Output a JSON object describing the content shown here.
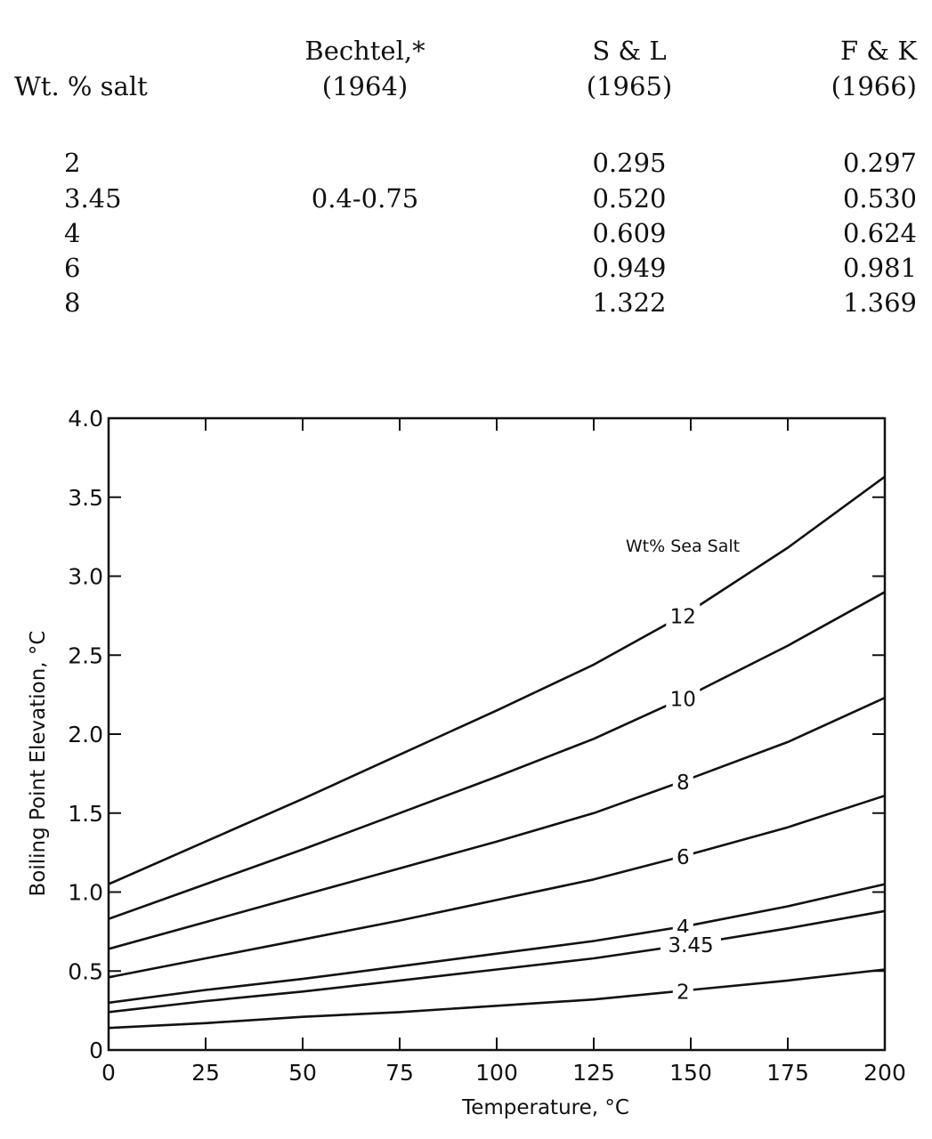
{
  "table": {
    "headers": [
      {
        "name": "wt-salt",
        "line1": "",
        "line2": "Wt. % salt"
      },
      {
        "name": "bechtel",
        "line1": "Bechtel,*",
        "line2": "(1964)"
      },
      {
        "name": "s-and-l",
        "line1": "S & L",
        "line2": "(1965)"
      },
      {
        "name": "f-and-k",
        "line1": "F & K",
        "line2": "(1966)"
      }
    ],
    "rows": [
      [
        "2",
        "",
        "0.295",
        "0.297"
      ],
      [
        "3.45",
        "0.4-0.75",
        "0.520",
        "0.530"
      ],
      [
        "4",
        "",
        "0.609",
        "0.624"
      ],
      [
        "6",
        "",
        "0.949",
        "0.981"
      ],
      [
        "8",
        "",
        "1.322",
        "1.369"
      ]
    ]
  },
  "chart_data": {
    "type": "line",
    "title": "",
    "xlabel": "Temperature, °C",
    "ylabel": "Boiling Point Elevation, °C",
    "xlim": [
      0,
      200
    ],
    "ylim": [
      0,
      4.0
    ],
    "x_ticks": [
      0,
      25,
      50,
      75,
      100,
      125,
      150,
      175,
      200
    ],
    "x_tick_labels": [
      "0",
      "25",
      "50",
      "75",
      "100",
      "125",
      "150",
      "175",
      "200"
    ],
    "y_ticks": [
      0,
      0.5,
      1.0,
      1.5,
      2.0,
      2.5,
      3.0,
      3.5,
      4.0
    ],
    "y_tick_labels": [
      "0",
      "0.5",
      "1.0",
      "1.5",
      "2.0",
      "2.5",
      "3.0",
      "3.5",
      "4.0"
    ],
    "grid": false,
    "legend_title": "Wt% Sea Salt",
    "series": [
      {
        "name": "12",
        "label_x": 148,
        "x": [
          0,
          25,
          50,
          75,
          100,
          125,
          150,
          175,
          200
        ],
        "y": [
          1.05,
          1.32,
          1.59,
          1.87,
          2.15,
          2.44,
          2.78,
          3.18,
          3.63
        ]
      },
      {
        "name": "10",
        "label_x": 148,
        "x": [
          0,
          25,
          50,
          75,
          100,
          125,
          150,
          175,
          200
        ],
        "y": [
          0.83,
          1.05,
          1.27,
          1.5,
          1.73,
          1.97,
          2.25,
          2.56,
          2.9
        ]
      },
      {
        "name": "8",
        "label_x": 148,
        "x": [
          0,
          25,
          50,
          75,
          100,
          125,
          150,
          175,
          200
        ],
        "y": [
          0.64,
          0.81,
          0.98,
          1.15,
          1.32,
          1.5,
          1.72,
          1.95,
          2.23
        ]
      },
      {
        "name": "6",
        "label_x": 148,
        "x": [
          0,
          25,
          50,
          75,
          100,
          125,
          150,
          175,
          200
        ],
        "y": [
          0.46,
          0.58,
          0.7,
          0.82,
          0.95,
          1.08,
          1.24,
          1.41,
          1.61
        ]
      },
      {
        "name": "4",
        "label_x": 148,
        "x": [
          0,
          25,
          50,
          75,
          100,
          125,
          150,
          175,
          200
        ],
        "y": [
          0.3,
          0.38,
          0.45,
          0.53,
          0.61,
          0.69,
          0.79,
          0.91,
          1.05
        ]
      },
      {
        "name": "3.45",
        "label_x": 150,
        "x": [
          0,
          25,
          50,
          75,
          100,
          125,
          150,
          175,
          200
        ],
        "y": [
          0.24,
          0.31,
          0.37,
          0.44,
          0.51,
          0.58,
          0.67,
          0.77,
          0.88
        ]
      },
      {
        "name": "2",
        "label_x": 148,
        "x": [
          0,
          25,
          50,
          75,
          100,
          125,
          150,
          175,
          200
        ],
        "y": [
          0.14,
          0.17,
          0.21,
          0.24,
          0.28,
          0.32,
          0.38,
          0.44,
          0.51
        ]
      }
    ]
  }
}
